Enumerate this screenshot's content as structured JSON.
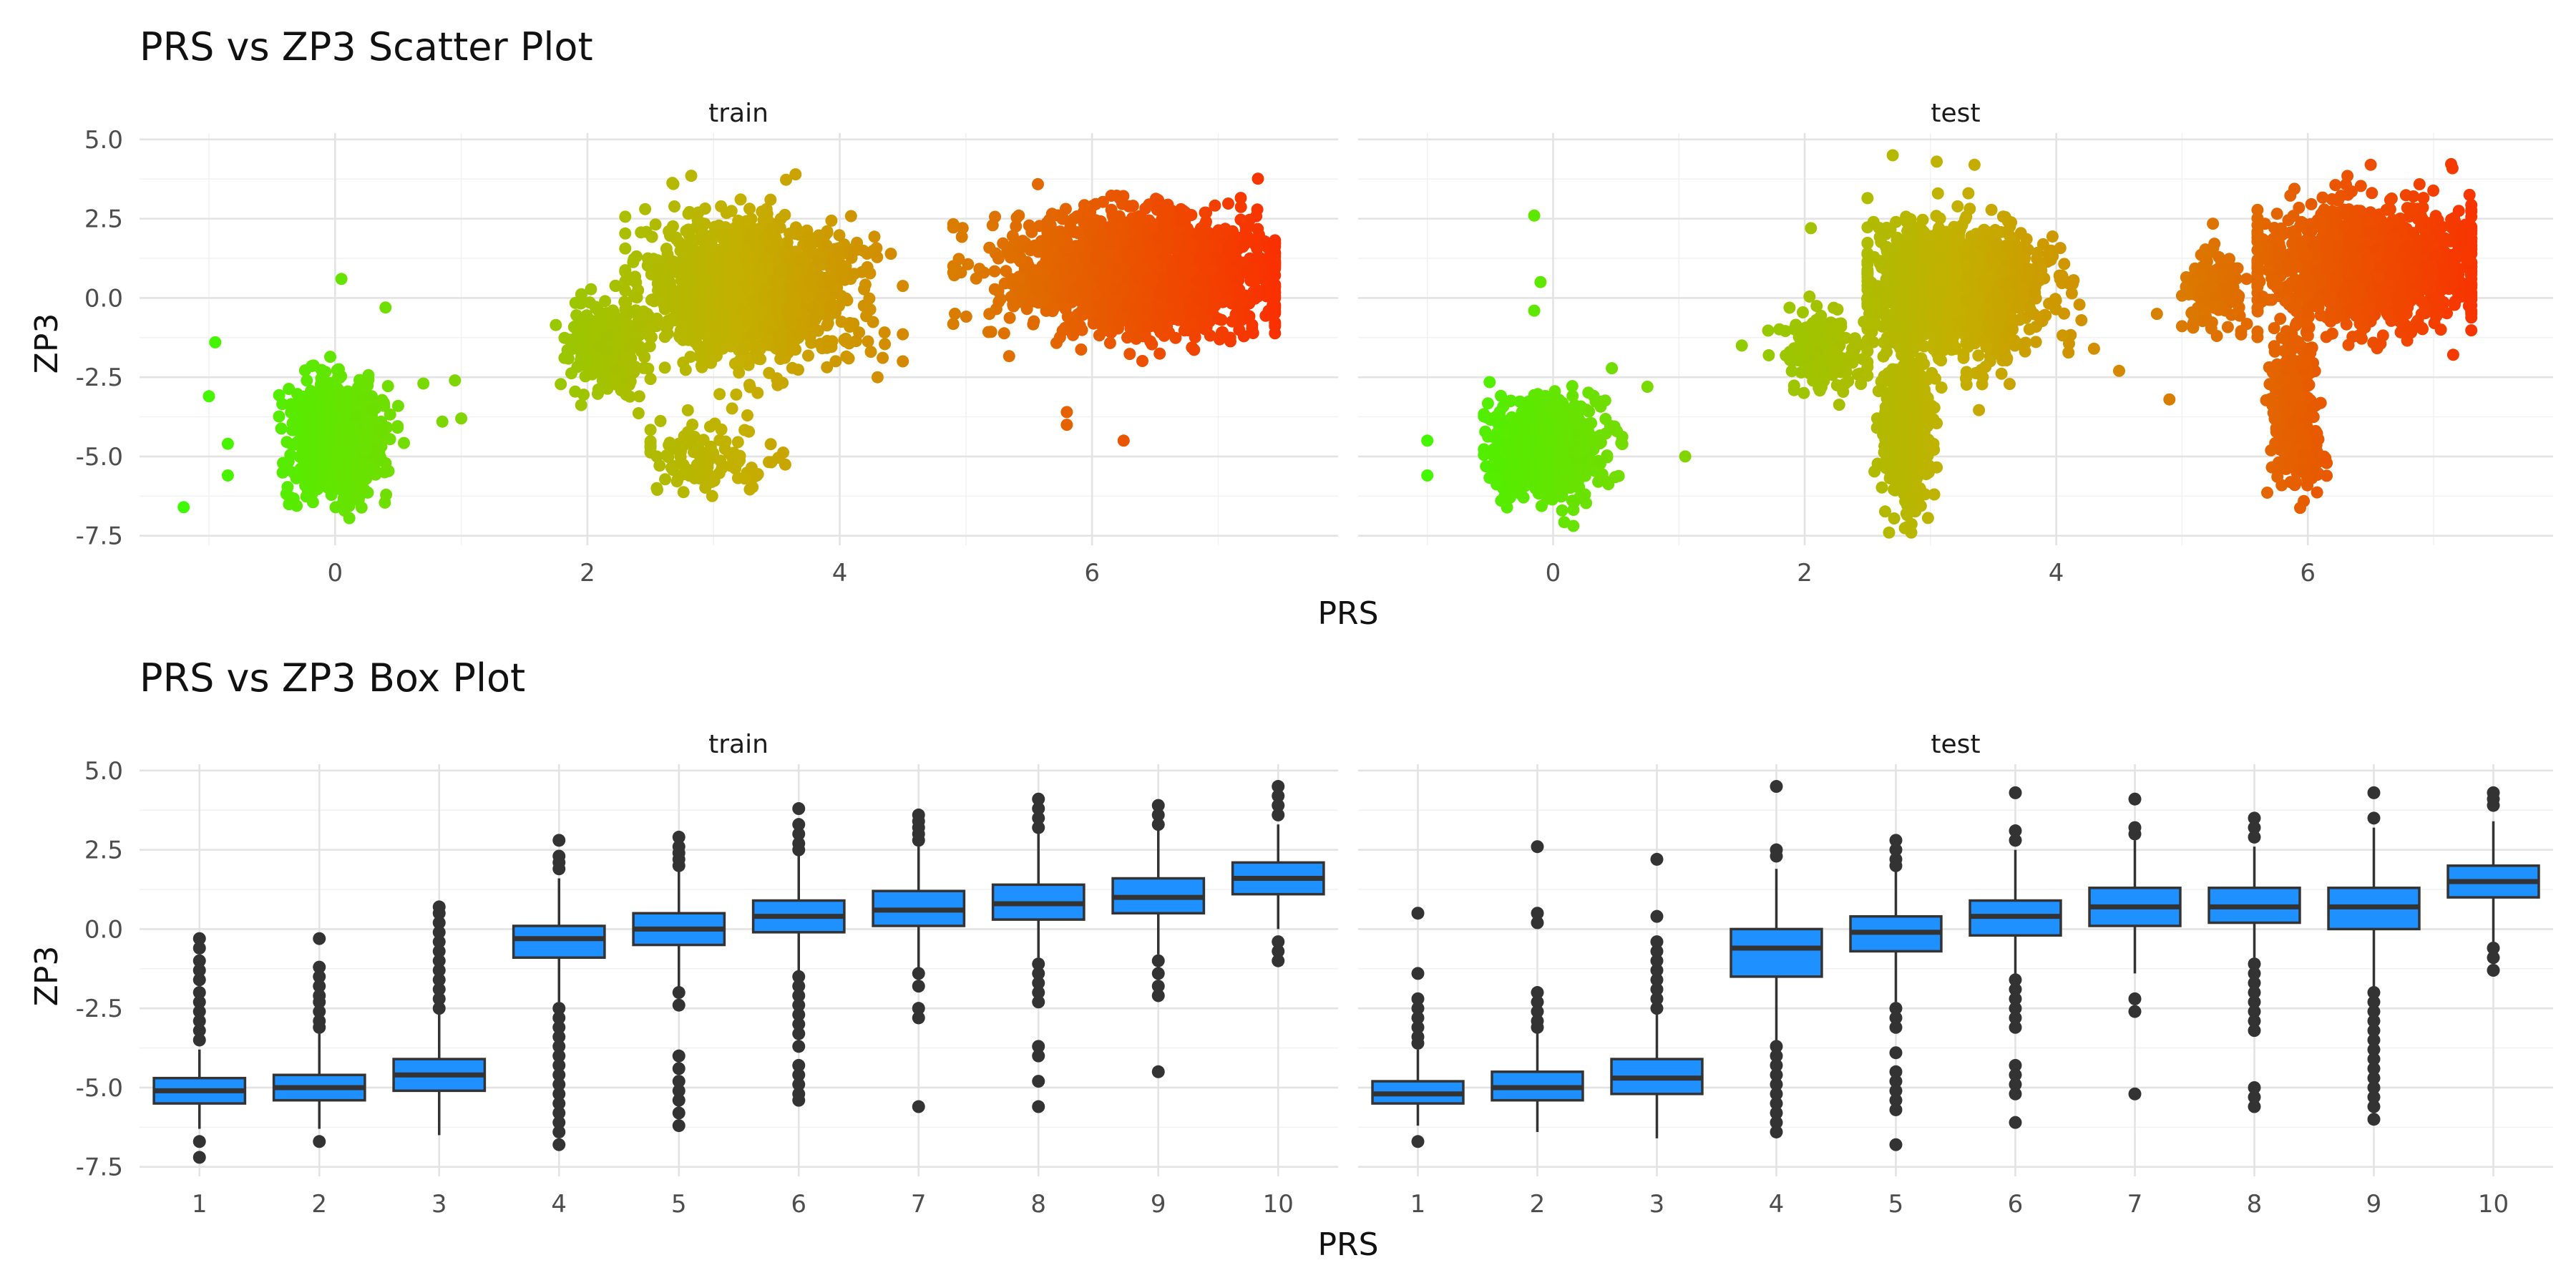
{
  "colors": {
    "panel_bg": "#ffffff",
    "grid_major": "#e3e3e3",
    "grid_minor": "#f1f1f1",
    "box_fill": "#1e90ff",
    "box_line": "#333333",
    "outlier": "#333333",
    "point_low": "#33ff00",
    "point_mid": "#c4b000",
    "point_high": "#ff2200"
  },
  "chart_data": [
    {
      "type": "scatter",
      "title": "PRS vs ZP3 Scatter Plot",
      "xlabel": "PRS",
      "ylabel": "ZP3",
      "xlim": [
        -1.55,
        7.95
      ],
      "ylim": [
        -7.8,
        5.2
      ],
      "x_ticks": [
        "0",
        "2",
        "4",
        "6"
      ],
      "y_ticks": [
        "5.0",
        "2.5",
        "0.0",
        "-2.5",
        "-5.0",
        "-7.5"
      ],
      "grid": true,
      "color_by": "PRS",
      "panels": [
        {
          "name": "train",
          "clusters": [
            {
              "x": [
                -0.5,
                0.55
              ],
              "cx": 0.0,
              "cy": -4.5,
              "sx": 0.17,
              "sy": 0.85,
              "n": 950
            },
            {
              "x": [
                1.75,
                2.5
              ],
              "cx": 2.15,
              "cy": -1.6,
              "sx": 0.15,
              "sy": 0.7,
              "n": 300
            },
            {
              "x": [
                2.3,
                4.5
              ],
              "cx": 3.3,
              "cy": 0.2,
              "sx": 0.4,
              "sy": 1.05,
              "n": 1500
            },
            {
              "x": [
                2.5,
                3.8
              ],
              "cx": 3.0,
              "cy": -5.0,
              "sx": 0.3,
              "sy": 0.55,
              "n": 110
            },
            {
              "x": [
                4.9,
                7.45
              ],
              "cx": 6.4,
              "cy": 0.8,
              "sx": 0.55,
              "sy": 0.95,
              "n": 1600
            }
          ],
          "outliers": [
            [
              -0.95,
              -1.4
            ],
            [
              -1.0,
              -3.1
            ],
            [
              -0.85,
              -4.6
            ],
            [
              -1.2,
              -6.6
            ],
            [
              -0.85,
              -5.6
            ],
            [
              0.05,
              0.6
            ],
            [
              0.85,
              -3.9
            ],
            [
              1.0,
              -3.8
            ],
            [
              0.7,
              -2.7
            ],
            [
              0.4,
              -0.3
            ],
            [
              0.95,
              -2.6
            ],
            [
              4.3,
              -2.5
            ],
            [
              4.5,
              -2.0
            ],
            [
              5.8,
              -4.0
            ],
            [
              6.25,
              -4.5
            ],
            [
              5.8,
              -3.6
            ],
            [
              3.65,
              3.9
            ]
          ]
        },
        {
          "name": "test",
          "clusters": [
            {
              "x": [
                -0.55,
                0.55
              ],
              "cx": -0.05,
              "cy": -4.7,
              "sx": 0.2,
              "sy": 0.75,
              "n": 900
            },
            {
              "x": [
                1.7,
                2.5
              ],
              "cx": 2.15,
              "cy": -1.7,
              "sx": 0.15,
              "sy": 0.6,
              "n": 200
            },
            {
              "x": [
                2.5,
                4.2
              ],
              "cx": 3.2,
              "cy": 0.3,
              "sx": 0.35,
              "sy": 1.05,
              "n": 1300
            },
            {
              "x": [
                2.55,
                3.05
              ],
              "cx": 2.8,
              "cy": -4.2,
              "sx": 0.1,
              "sy": 1.3,
              "n": 450
            },
            {
              "x": [
                5.0,
                5.6
              ],
              "cx": 5.25,
              "cy": 0.3,
              "sx": 0.12,
              "sy": 0.6,
              "n": 140
            },
            {
              "x": [
                5.6,
                7.3
              ],
              "cx": 6.5,
              "cy": 1.0,
              "sx": 0.45,
              "sy": 0.95,
              "n": 1200
            },
            {
              "x": [
                5.6,
                6.25
              ],
              "cx": 5.9,
              "cy": -3.2,
              "sx": 0.1,
              "sy": 1.2,
              "n": 250
            },
            {
              "x": [
                5.7,
                6.15
              ],
              "cx": 5.95,
              "cy": -5.1,
              "sx": 0.1,
              "sy": 0.35,
              "n": 80
            }
          ],
          "outliers": [
            [
              -0.15,
              2.6
            ],
            [
              -0.1,
              0.5
            ],
            [
              -0.15,
              -0.4
            ],
            [
              -1.0,
              -5.6
            ],
            [
              -1.0,
              -4.5
            ],
            [
              0.75,
              -2.8
            ],
            [
              1.05,
              -5.0
            ],
            [
              1.5,
              -1.5
            ],
            [
              2.05,
              2.2
            ],
            [
              2.7,
              4.5
            ],
            [
              3.05,
              4.3
            ],
            [
              3.35,
              4.2
            ],
            [
              4.3,
              -1.6
            ],
            [
              4.5,
              -2.3
            ],
            [
              4.9,
              -3.2
            ],
            [
              4.8,
              -0.5
            ],
            [
              6.5,
              4.2
            ]
          ]
        }
      ]
    },
    {
      "type": "box",
      "title": "PRS vs ZP3 Box Plot",
      "xlabel": "PRS",
      "ylabel": "ZP3",
      "categories": [
        "1",
        "2",
        "3",
        "4",
        "5",
        "6",
        "7",
        "8",
        "9",
        "10"
      ],
      "ylim": [
        -7.8,
        5.2
      ],
      "y_ticks": [
        "5.0",
        "2.5",
        "0.0",
        "-2.5",
        "-5.0",
        "-7.5"
      ],
      "grid": true,
      "panels": [
        {
          "name": "train",
          "boxes": [
            {
              "q1": -5.5,
              "median": -5.1,
              "q3": -4.7,
              "lower": -6.3,
              "upper": -3.8,
              "outliers": [
                -0.3,
                -0.6,
                -1.0,
                -1.3,
                -1.6,
                -2.0,
                -2.3,
                -2.6,
                -2.9,
                -3.2,
                -3.5,
                -6.7,
                -7.2
              ]
            },
            {
              "q1": -5.4,
              "median": -5.0,
              "q3": -4.6,
              "lower": -6.3,
              "upper": -3.3,
              "outliers": [
                -0.3,
                -1.2,
                -1.5,
                -1.8,
                -2.1,
                -2.3,
                -2.6,
                -2.9,
                -3.1,
                -6.7
              ]
            },
            {
              "q1": -5.1,
              "median": -4.6,
              "q3": -4.1,
              "lower": -6.5,
              "upper": -2.7,
              "outliers": [
                0.7,
                0.5,
                0.2,
                -0.1,
                -0.4,
                -0.7,
                -1.0,
                -1.3,
                -1.6,
                -1.9,
                -2.2,
                -2.5
              ]
            },
            {
              "q1": -0.9,
              "median": -0.3,
              "q3": 0.1,
              "lower": -2.3,
              "upper": 1.6,
              "outliers": [
                2.8,
                2.3,
                2.1,
                1.9,
                -2.5,
                -2.8,
                -3.1,
                -3.4,
                -3.7,
                -4.0,
                -4.3,
                -4.6,
                -4.9,
                -5.2,
                -5.5,
                -5.8,
                -6.1,
                -6.4,
                -6.8
              ]
            },
            {
              "q1": -0.5,
              "median": 0.0,
              "q3": 0.5,
              "lower": -1.9,
              "upper": 1.9,
              "outliers": [
                2.9,
                2.6,
                2.4,
                2.2,
                2.0,
                -2.0,
                -2.4,
                -4.0,
                -4.4,
                -4.8,
                -5.1,
                -5.4,
                -5.8,
                -6.2
              ]
            },
            {
              "q1": -0.1,
              "median": 0.4,
              "q3": 0.9,
              "lower": -1.3,
              "upper": 2.3,
              "outliers": [
                3.8,
                3.3,
                3.0,
                2.7,
                2.5,
                -1.5,
                -1.8,
                -2.1,
                -2.4,
                -2.7,
                -3.0,
                -3.3,
                -3.7,
                -4.3,
                -4.6,
                -4.9,
                -5.2,
                -5.4
              ]
            },
            {
              "q1": 0.1,
              "median": 0.6,
              "q3": 1.2,
              "lower": -1.2,
              "upper": 2.6,
              "outliers": [
                3.6,
                3.4,
                3.2,
                3.0,
                2.8,
                -1.4,
                -1.8,
                -2.5,
                -2.8,
                -5.6
              ]
            },
            {
              "q1": 0.3,
              "median": 0.8,
              "q3": 1.4,
              "lower": -0.9,
              "upper": 3.0,
              "outliers": [
                4.1,
                3.8,
                3.5,
                3.2,
                -1.1,
                -1.4,
                -1.7,
                -2.0,
                -2.3,
                -3.7,
                -4.0,
                -4.8,
                -5.6
              ]
            },
            {
              "q1": 0.5,
              "median": 1.0,
              "q3": 1.6,
              "lower": -0.8,
              "upper": 3.1,
              "outliers": [
                3.9,
                3.6,
                3.3,
                -1.0,
                -1.4,
                -1.8,
                -2.1,
                -4.5
              ]
            },
            {
              "q1": 1.1,
              "median": 1.6,
              "q3": 2.1,
              "lower": 0.0,
              "upper": 3.3,
              "outliers": [
                4.5,
                4.2,
                3.9,
                3.6,
                -0.4,
                -0.7,
                -1.0
              ]
            }
          ]
        },
        {
          "name": "test",
          "boxes": [
            {
              "q1": -5.5,
              "median": -5.2,
              "q3": -4.8,
              "lower": -6.2,
              "upper": -3.8,
              "outliers": [
                0.5,
                -1.4,
                -2.2,
                -2.5,
                -2.8,
                -3.1,
                -3.4,
                -3.6,
                -6.7
              ]
            },
            {
              "q1": -5.4,
              "median": -5.0,
              "q3": -4.5,
              "lower": -6.4,
              "upper": -3.2,
              "outliers": [
                2.6,
                0.5,
                0.2,
                -2.0,
                -2.3,
                -2.6,
                -2.9,
                -3.1
              ]
            },
            {
              "q1": -5.2,
              "median": -4.7,
              "q3": -4.1,
              "lower": -6.6,
              "upper": -2.7,
              "outliers": [
                2.2,
                0.4,
                -0.4,
                -0.7,
                -1.0,
                -1.3,
                -1.6,
                -1.9,
                -2.2,
                -2.5
              ]
            },
            {
              "q1": -1.5,
              "median": -0.6,
              "q3": 0.0,
              "lower": -3.5,
              "upper": 1.9,
              "outliers": [
                4.5,
                2.5,
                2.3,
                -3.7,
                -4.0,
                -4.3,
                -4.6,
                -4.9,
                -5.2,
                -5.5,
                -5.8,
                -6.1,
                -6.4
              ]
            },
            {
              "q1": -0.7,
              "median": -0.1,
              "q3": 0.4,
              "lower": -2.3,
              "upper": 1.9,
              "outliers": [
                2.8,
                2.5,
                2.2,
                2.0,
                -2.5,
                -2.8,
                -3.1,
                -3.9,
                -4.5,
                -4.8,
                -5.1,
                -5.4,
                -5.7,
                -6.8
              ]
            },
            {
              "q1": -0.2,
              "median": 0.4,
              "q3": 0.9,
              "lower": -1.4,
              "upper": 2.5,
              "outliers": [
                4.3,
                3.1,
                2.8,
                -1.6,
                -1.9,
                -2.2,
                -2.5,
                -2.8,
                -3.1,
                -4.3,
                -4.6,
                -4.9,
                -5.2,
                -6.1
              ]
            },
            {
              "q1": 0.1,
              "median": 0.7,
              "q3": 1.3,
              "lower": -1.4,
              "upper": 2.8,
              "outliers": [
                4.1,
                3.2,
                3.0,
                -2.2,
                -2.6,
                -5.2
              ]
            },
            {
              "q1": 0.2,
              "median": 0.7,
              "q3": 1.3,
              "lower": -0.9,
              "upper": 2.6,
              "outliers": [
                3.5,
                3.2,
                2.9,
                -1.1,
                -1.4,
                -1.7,
                -2.0,
                -2.3,
                -2.6,
                -2.9,
                -3.2,
                -5.0,
                -5.3,
                -5.6
              ]
            },
            {
              "q1": 0.0,
              "median": 0.7,
              "q3": 1.3,
              "lower": -1.9,
              "upper": 3.2,
              "outliers": [
                4.3,
                3.5,
                -2.0,
                -2.3,
                -2.6,
                -2.9,
                -3.2,
                -3.5,
                -3.8,
                -4.1,
                -4.4,
                -4.7,
                -5.0,
                -5.3,
                -5.6,
                -6.0
              ]
            },
            {
              "q1": 1.0,
              "median": 1.5,
              "q3": 2.0,
              "lower": -0.4,
              "upper": 3.4,
              "outliers": [
                4.3,
                4.1,
                3.9,
                -0.6,
                -0.9,
                -1.3
              ]
            }
          ]
        }
      ]
    }
  ]
}
